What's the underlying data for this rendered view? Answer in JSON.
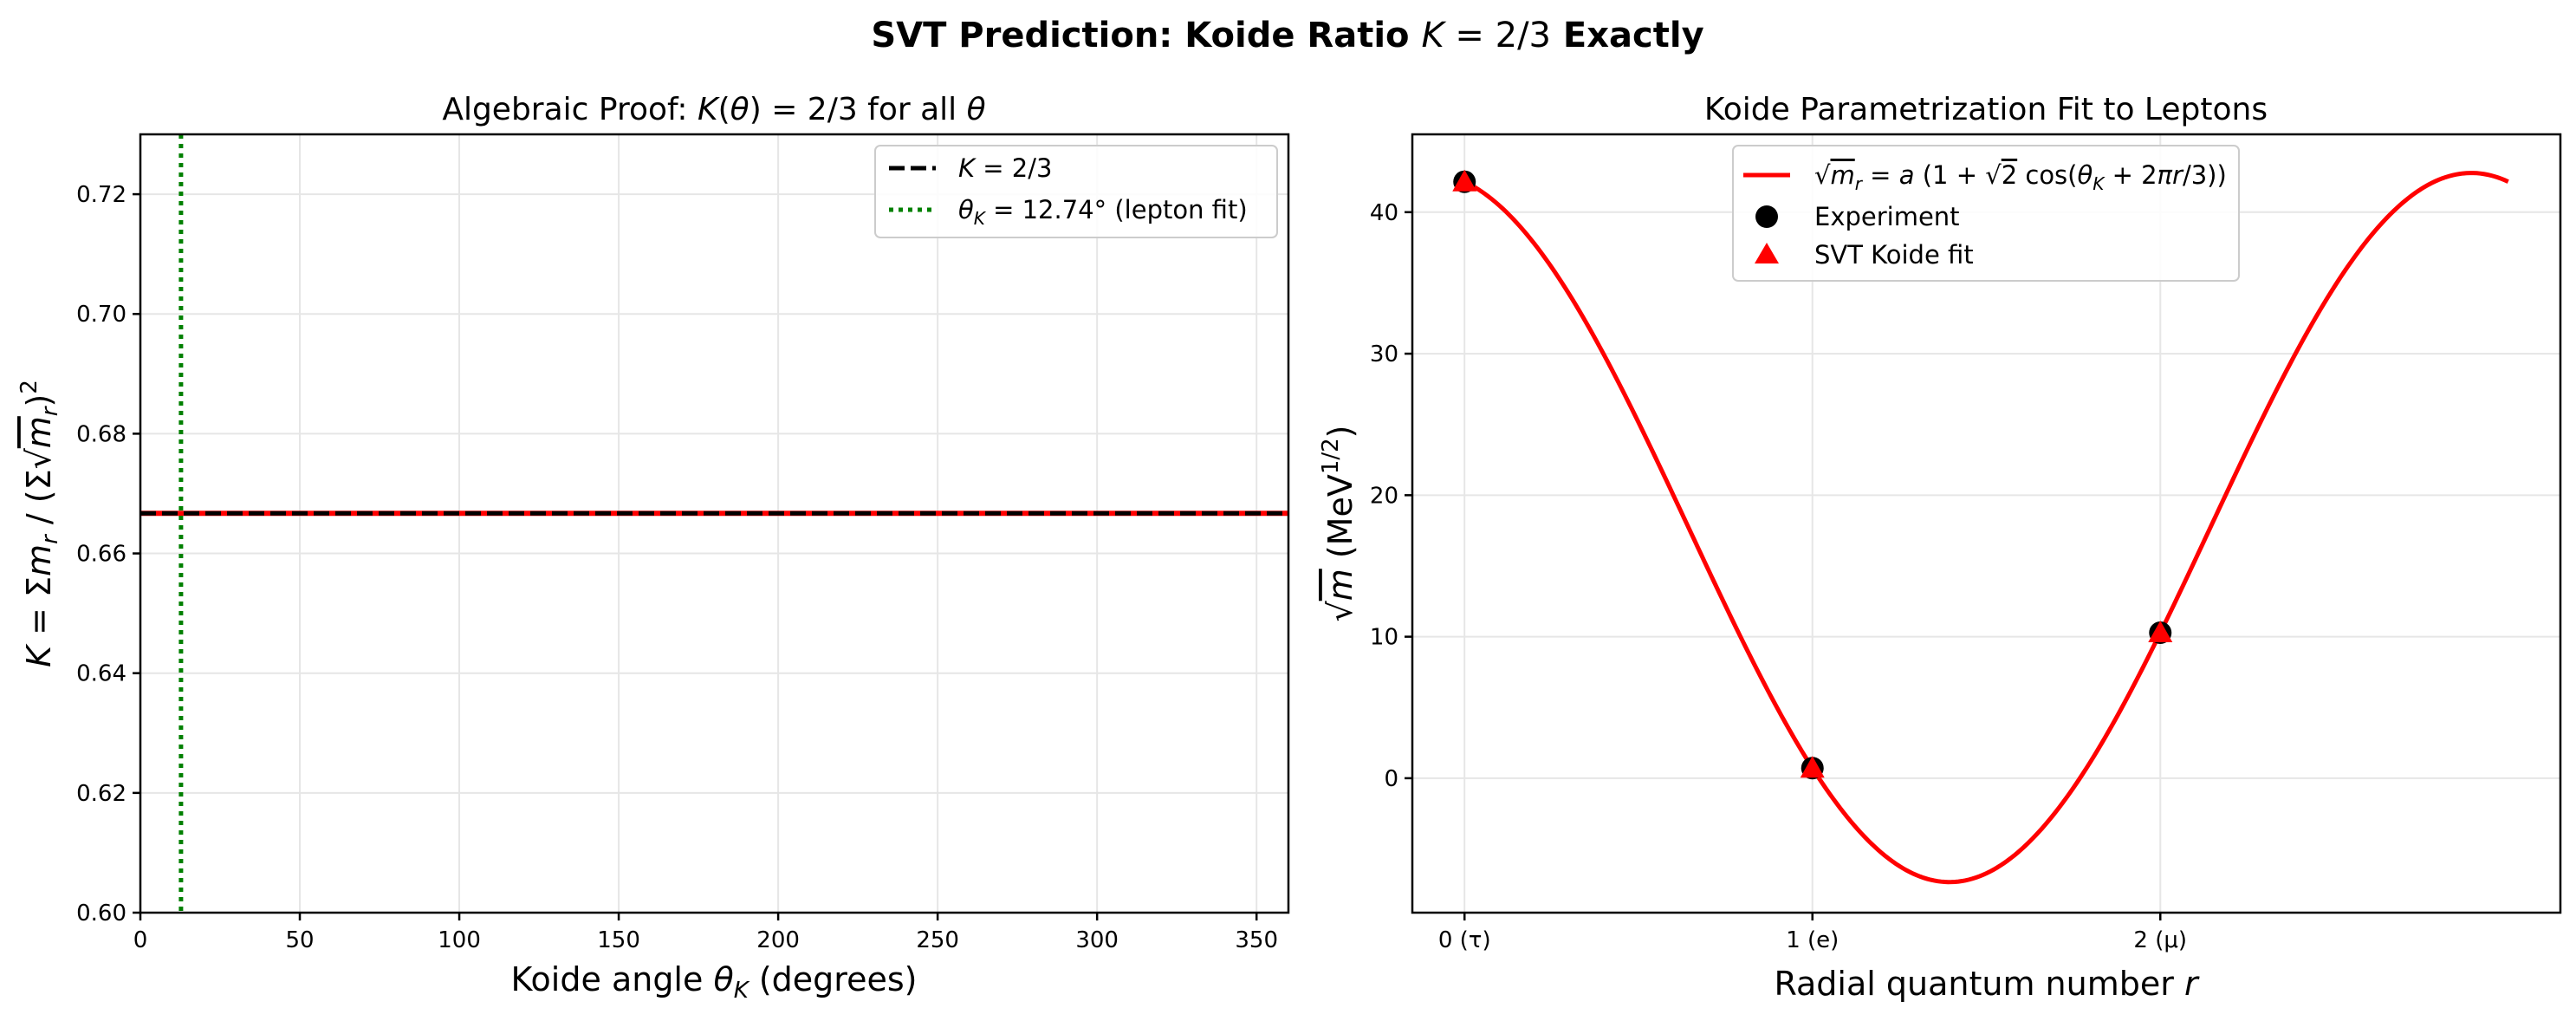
{
  "figure": {
    "suptitle": "SVT Prediction: Koide Ratio  K = 2/3  Exactly"
  },
  "chart_data": [
    {
      "type": "line",
      "title": "Algebraic Proof:  K(θ) = 2/3  for all θ",
      "xlabel": "Koide angle  θ_K  (degrees)",
      "ylabel": "K = Σm_r / (Σ√m_r)²",
      "xlim": [
        0,
        360
      ],
      "ylim": [
        0.6,
        0.73
      ],
      "xticks": [
        0,
        50,
        100,
        150,
        200,
        250,
        300,
        350
      ],
      "xtick_labels": [
        "0",
        "50",
        "100",
        "150",
        "200",
        "250",
        "300",
        "350"
      ],
      "yticks": [
        0.6,
        0.62,
        0.64,
        0.66,
        0.68,
        0.7,
        0.72
      ],
      "ytick_labels": [
        "0.60",
        "0.62",
        "0.64",
        "0.66",
        "0.68",
        "0.70",
        "0.72"
      ],
      "grid": true,
      "legend_position": "top-right",
      "series": [
        {
          "x": [
            0,
            360
          ],
          "values": [
            0.6667,
            0.6667
          ],
          "color": "#ff0000",
          "style": "solid"
        },
        {
          "name": "K = 2/3",
          "x": [
            0,
            360
          ],
          "values": [
            0.6667,
            0.6667
          ],
          "color": "#000000",
          "style": "dashed"
        }
      ],
      "vlines": [
        {
          "name": "θ_K = 12.74°  (lepton fit)",
          "x": 12.74,
          "color": "#008000",
          "style": "dotted"
        }
      ]
    },
    {
      "type": "line",
      "title": "Koide Parametrization Fit to Leptons",
      "xlabel": "Radial quantum number  r",
      "ylabel": "√m  (MeV^1/2)",
      "xlim": [
        -0.15,
        3.15
      ],
      "ylim": [
        -9.5,
        45.5
      ],
      "xticks": [
        0,
        1,
        2
      ],
      "xtick_labels": [
        "0 (τ)",
        "1 (e)",
        "2 (μ)"
      ],
      "yticks": [
        0,
        10,
        20,
        30,
        40
      ],
      "ytick_labels": [
        "0",
        "10",
        "20",
        "30",
        "40"
      ],
      "grid": true,
      "legend_position": "top-center",
      "curve": {
        "name": "√m_r = a (1 + √2 cos(θ_K + 2πr/3))",
        "a": 17.716,
        "theta_deg": 12.74,
        "r_range": [
          0,
          3
        ],
        "color": "#ff0000"
      },
      "series": [
        {
          "name": "Experiment",
          "x": [
            0,
            1,
            2
          ],
          "values": [
            42.15,
            0.715,
            10.28
          ],
          "marker": "circle",
          "color": "#000000"
        },
        {
          "name": "SVT Koide fit",
          "x": [
            0,
            1,
            2
          ],
          "values": [
            42.15,
            0.715,
            10.28
          ],
          "marker": "triangle",
          "color": "#ff0000"
        }
      ]
    }
  ]
}
